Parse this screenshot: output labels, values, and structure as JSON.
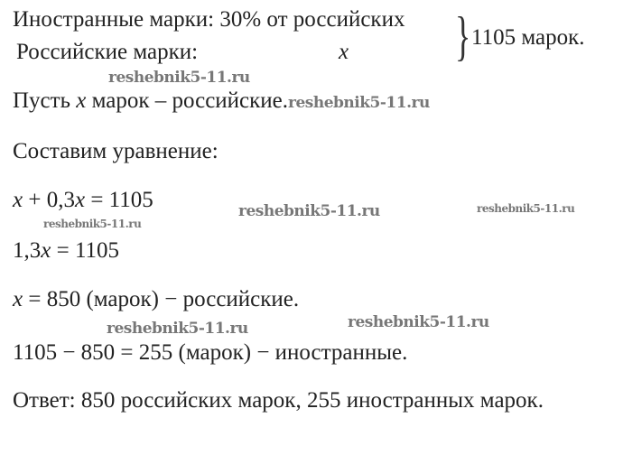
{
  "given": {
    "foreign_label": "Иностранные марки: 30% от российских",
    "russian_label": "Российские марки:",
    "russian_var": "x",
    "total": "1105 марок."
  },
  "let_line": {
    "prefix": "Пусть ",
    "var": "x",
    "suffix": " марок –  российские."
  },
  "setup": "Составим уравнение:",
  "equations": {
    "eq1_a": "x",
    "eq1_b": " + 0,3",
    "eq1_c": "x",
    "eq1_d": " = 1105",
    "eq2_a": "1,3",
    "eq2_b": "x",
    "eq2_c": " = 1105",
    "eq3_a": "x",
    "eq3_b": " = 850 (марок) − российские.",
    "eq4": "1105 − 850 = 255 (марок) − иностранные."
  },
  "answer": "Ответ: 850 российских марок, 255 иностранных марок.",
  "watermark": "reshebnik5-11.ru"
}
